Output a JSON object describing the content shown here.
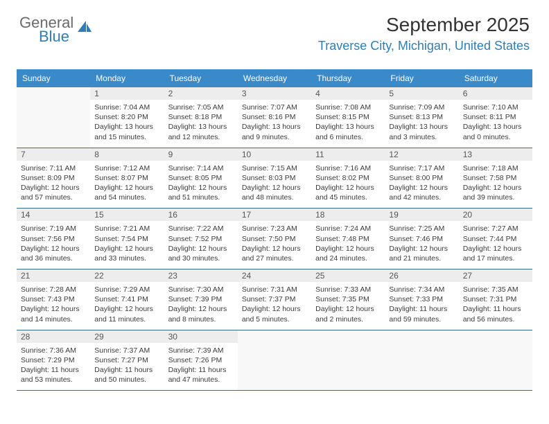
{
  "logo": {
    "text1": "General",
    "text2": "Blue",
    "color1": "#6b6b6b",
    "color2": "#2f7db5"
  },
  "header": {
    "title": "September 2025",
    "location": "Traverse City, Michigan, United States",
    "title_color": "#333333",
    "location_color": "#2f7db5"
  },
  "calendar": {
    "header_bg": "#3a89c9",
    "header_fg": "#ffffff",
    "row_border_color": "#3a6a8a",
    "daynum_bg": "#ededed",
    "days_of_week": [
      "Sunday",
      "Monday",
      "Tuesday",
      "Wednesday",
      "Thursday",
      "Friday",
      "Saturday"
    ],
    "weeks": [
      [
        null,
        {
          "n": "1",
          "sr": "7:04 AM",
          "ss": "8:20 PM",
          "dl": "13 hours and 15 minutes."
        },
        {
          "n": "2",
          "sr": "7:05 AM",
          "ss": "8:18 PM",
          "dl": "13 hours and 12 minutes."
        },
        {
          "n": "3",
          "sr": "7:07 AM",
          "ss": "8:16 PM",
          "dl": "13 hours and 9 minutes."
        },
        {
          "n": "4",
          "sr": "7:08 AM",
          "ss": "8:15 PM",
          "dl": "13 hours and 6 minutes."
        },
        {
          "n": "5",
          "sr": "7:09 AM",
          "ss": "8:13 PM",
          "dl": "13 hours and 3 minutes."
        },
        {
          "n": "6",
          "sr": "7:10 AM",
          "ss": "8:11 PM",
          "dl": "13 hours and 0 minutes."
        }
      ],
      [
        {
          "n": "7",
          "sr": "7:11 AM",
          "ss": "8:09 PM",
          "dl": "12 hours and 57 minutes."
        },
        {
          "n": "8",
          "sr": "7:12 AM",
          "ss": "8:07 PM",
          "dl": "12 hours and 54 minutes."
        },
        {
          "n": "9",
          "sr": "7:14 AM",
          "ss": "8:05 PM",
          "dl": "12 hours and 51 minutes."
        },
        {
          "n": "10",
          "sr": "7:15 AM",
          "ss": "8:03 PM",
          "dl": "12 hours and 48 minutes."
        },
        {
          "n": "11",
          "sr": "7:16 AM",
          "ss": "8:02 PM",
          "dl": "12 hours and 45 minutes."
        },
        {
          "n": "12",
          "sr": "7:17 AM",
          "ss": "8:00 PM",
          "dl": "12 hours and 42 minutes."
        },
        {
          "n": "13",
          "sr": "7:18 AM",
          "ss": "7:58 PM",
          "dl": "12 hours and 39 minutes."
        }
      ],
      [
        {
          "n": "14",
          "sr": "7:19 AM",
          "ss": "7:56 PM",
          "dl": "12 hours and 36 minutes."
        },
        {
          "n": "15",
          "sr": "7:21 AM",
          "ss": "7:54 PM",
          "dl": "12 hours and 33 minutes."
        },
        {
          "n": "16",
          "sr": "7:22 AM",
          "ss": "7:52 PM",
          "dl": "12 hours and 30 minutes."
        },
        {
          "n": "17",
          "sr": "7:23 AM",
          "ss": "7:50 PM",
          "dl": "12 hours and 27 minutes."
        },
        {
          "n": "18",
          "sr": "7:24 AM",
          "ss": "7:48 PM",
          "dl": "12 hours and 24 minutes."
        },
        {
          "n": "19",
          "sr": "7:25 AM",
          "ss": "7:46 PM",
          "dl": "12 hours and 21 minutes."
        },
        {
          "n": "20",
          "sr": "7:27 AM",
          "ss": "7:44 PM",
          "dl": "12 hours and 17 minutes."
        }
      ],
      [
        {
          "n": "21",
          "sr": "7:28 AM",
          "ss": "7:43 PM",
          "dl": "12 hours and 14 minutes."
        },
        {
          "n": "22",
          "sr": "7:29 AM",
          "ss": "7:41 PM",
          "dl": "12 hours and 11 minutes."
        },
        {
          "n": "23",
          "sr": "7:30 AM",
          "ss": "7:39 PM",
          "dl": "12 hours and 8 minutes."
        },
        {
          "n": "24",
          "sr": "7:31 AM",
          "ss": "7:37 PM",
          "dl": "12 hours and 5 minutes."
        },
        {
          "n": "25",
          "sr": "7:33 AM",
          "ss": "7:35 PM",
          "dl": "12 hours and 2 minutes."
        },
        {
          "n": "26",
          "sr": "7:34 AM",
          "ss": "7:33 PM",
          "dl": "11 hours and 59 minutes."
        },
        {
          "n": "27",
          "sr": "7:35 AM",
          "ss": "7:31 PM",
          "dl": "11 hours and 56 minutes."
        }
      ],
      [
        {
          "n": "28",
          "sr": "7:36 AM",
          "ss": "7:29 PM",
          "dl": "11 hours and 53 minutes."
        },
        {
          "n": "29",
          "sr": "7:37 AM",
          "ss": "7:27 PM",
          "dl": "11 hours and 50 minutes."
        },
        {
          "n": "30",
          "sr": "7:39 AM",
          "ss": "7:26 PM",
          "dl": "11 hours and 47 minutes."
        },
        null,
        null,
        null,
        null
      ]
    ]
  },
  "labels": {
    "sunrise": "Sunrise:",
    "sunset": "Sunset:",
    "daylight": "Daylight:"
  }
}
